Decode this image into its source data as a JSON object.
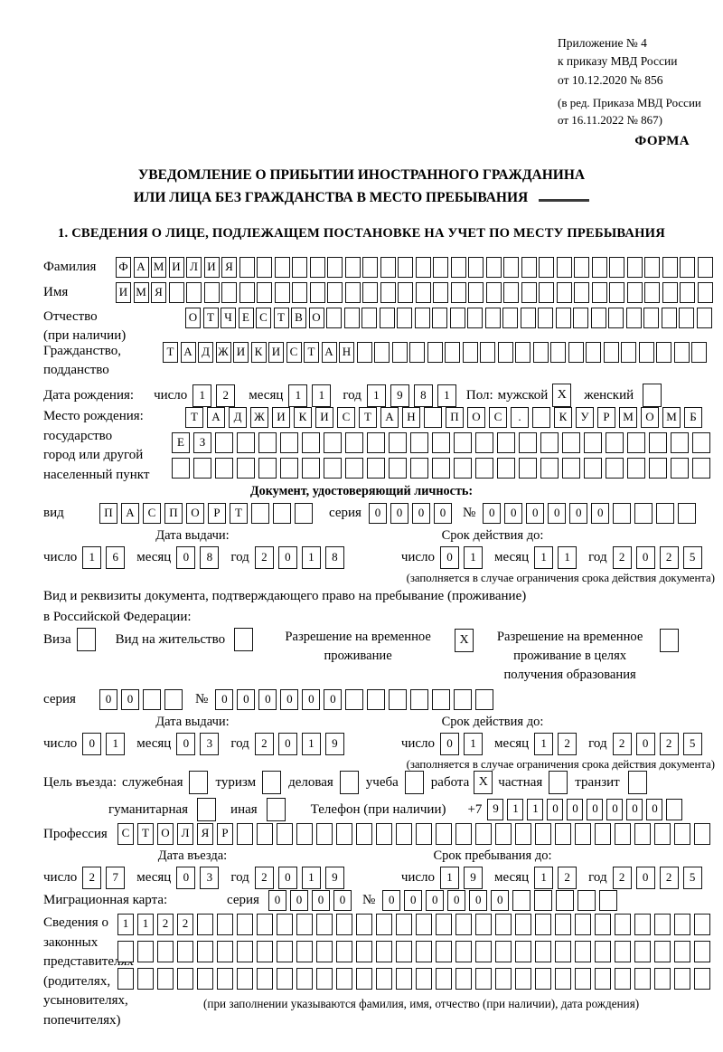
{
  "common": {
    "day": "число",
    "month": "месяц",
    "year": "год",
    "series": "серия",
    "num": "№",
    "limit_note": "(заполняется в случае ограничения срока действия документа)"
  },
  "meta": {
    "appendix": [
      "Приложение № 4",
      "к приказу МВД России",
      "от 10.12.2020 № 856"
    ],
    "revision": [
      "(в ред. Приказа МВД России",
      "от 16.11.2022 № 867)"
    ],
    "form": "ФОРМА"
  },
  "title": {
    "line1": "УВЕДОМЛЕНИЕ О ПРИБЫТИИ ИНОСТРАННОГО ГРАЖДАНИНА",
    "line2": "ИЛИ ЛИЦА БЕЗ ГРАЖДАНСТВА В МЕСТО ПРЕБЫВАНИЯ"
  },
  "s1": {
    "heading": "1. СВЕДЕНИЯ О ЛИЦЕ, ПОДЛЕЖАЩЕМ ПОСТАНОВКЕ НА УЧЕТ ПО МЕСТУ ПРЕБЫВАНИЯ",
    "surname": {
      "label": "Фамилия",
      "row": {
        "v": "ФАМИЛИЯ",
        "n": 34
      }
    },
    "firstname": {
      "label": "Имя",
      "row": {
        "v": "ИМЯ",
        "n": 34
      }
    },
    "patronymic": {
      "label1": "Отчество",
      "label2": "(при наличии)",
      "row": {
        "v": "ОТЧЕСТВО",
        "n": 30
      }
    },
    "citizenship": {
      "label1": "Гражданство,",
      "label2": "подданство",
      "row": {
        "v": "ТАДЖИКИСТАН",
        "n": 31
      }
    },
    "birth": {
      "label": "Дата рождения:",
      "d": {
        "v": "12"
      },
      "m": {
        "v": "11"
      },
      "y": {
        "v": "1981"
      },
      "sex_label": "Пол:",
      "male_label": "мужской",
      "male": {
        "v": "X"
      },
      "female_label": "женский",
      "female": {
        "v": ""
      }
    },
    "birthplace": {
      "lines": [
        "Место рождения:",
        "государство",
        "город или другой",
        "населенный пункт"
      ],
      "row1": {
        "v": "ТАДЖИКИСТАН ПОС. КУРМОМБ",
        "n": 24
      },
      "row2": {
        "v": "ЕЗ",
        "n": 25
      },
      "row3": {
        "v": "",
        "n": 25
      }
    },
    "iddoc": {
      "heading": "Документ, удостоверяющий личность:",
      "type_label": "вид",
      "type": {
        "v": "ПАСПОРТ",
        "n": 10
      },
      "series": {
        "v": "0000",
        "n": 4
      },
      "number": {
        "v": "000000",
        "n": 10
      },
      "issue_head": "Дата выдачи:",
      "issue": {
        "d": {
          "v": "16"
        },
        "m": {
          "v": "08"
        },
        "y": {
          "v": "2018"
        }
      },
      "valid_head": "Срок действия до:",
      "valid": {
        "d": {
          "v": "01"
        },
        "m": {
          "v": "11"
        },
        "y": {
          "v": "2025"
        }
      }
    },
    "permitdoc": {
      "intro1": "Вид и реквизиты документа, подтверждающего право на пребывание (проживание)",
      "intro2": "в Российской Федерации:",
      "visa_label": "Виза",
      "visa": {
        "v": ""
      },
      "vnz_label": "Вид на жительство",
      "vnz": {
        "v": ""
      },
      "rvp_line1": "Разрешение на временное",
      "rvp_line2": "проживание",
      "rvp": {
        "v": "X"
      },
      "rvpo_line1": "Разрешение на временное",
      "rvpo_line2": "проживание в целях",
      "rvpo_line3": "получения образования",
      "rvpo": {
        "v": ""
      },
      "series": {
        "v": "00",
        "n": 4
      },
      "number": {
        "v": "000000",
        "n": 13
      },
      "issue_head": "Дата выдачи:",
      "issue": {
        "d": {
          "v": "01"
        },
        "m": {
          "v": "03"
        },
        "y": {
          "v": "2019"
        }
      },
      "valid_head": "Срок действия до:",
      "valid": {
        "d": {
          "v": "01"
        },
        "m": {
          "v": "12"
        },
        "y": {
          "v": "2025"
        }
      }
    },
    "purpose": {
      "label": "Цель въезда:",
      "o1": [
        {
          "t": "служебная",
          "v": ""
        },
        {
          "t": "туризм",
          "v": ""
        },
        {
          "t": "деловая",
          "v": ""
        },
        {
          "t": "учеба",
          "v": ""
        },
        {
          "t": "работа",
          "v": "X"
        },
        {
          "t": "частная",
          "v": ""
        },
        {
          "t": "транзит",
          "v": ""
        }
      ],
      "o2": [
        {
          "t": "гуманитарная",
          "v": ""
        },
        {
          "t": "иная",
          "v": ""
        }
      ],
      "phone_label": "Телефон (при наличии)",
      "phone_prefix": "+7",
      "phone": {
        "v": "911000000",
        "n": 10
      }
    },
    "profession": {
      "label": "Профессия",
      "row": {
        "v": "СТОЛЯР",
        "n": 30
      }
    },
    "entry": {
      "in_head": "Дата въезда:",
      "in": {
        "d": {
          "v": "27"
        },
        "m": {
          "v": "03"
        },
        "y": {
          "v": "2019"
        }
      },
      "until_head": "Срок пребывания до:",
      "until": {
        "d": {
          "v": "19"
        },
        "m": {
          "v": "12"
        },
        "y": {
          "v": "2025"
        }
      }
    },
    "migcard": {
      "label": "Миграционная карта:",
      "series": {
        "v": "0000",
        "n": 4
      },
      "number": {
        "v": "000000",
        "n": 11
      }
    },
    "reps": {
      "lines": [
        "Сведения о",
        "законных",
        "представителях",
        "(родителях,",
        "усыновителях,",
        "попечителях)"
      ],
      "row1": {
        "v": "1122",
        "n": 30
      },
      "row2": {
        "v": "",
        "n": 30
      },
      "row3": {
        "v": "",
        "n": 30
      },
      "note": "(при заполнении указываются фамилия, имя, отчество (при наличии), дата рождения)"
    }
  }
}
